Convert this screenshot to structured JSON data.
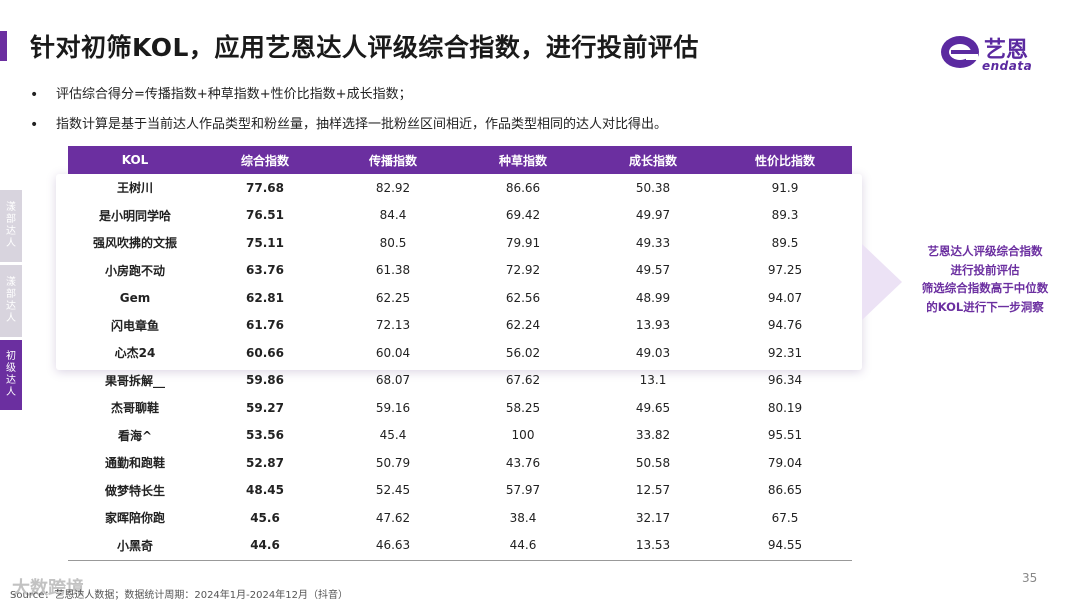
{
  "title": "针对初筛KOL，应用艺恩达人评级综合指数，进行投前评估",
  "logo": {
    "name": "艺恩",
    "sub": "endata"
  },
  "bullets": [
    "评估综合得分=传播指数+种草指数+性价比指数+成长指数；",
    "指数计算是基于当前达人作品类型和粉丝量，抽样选择一批粉丝区间相近，作品类型相同的达人对比得出。"
  ],
  "side_tabs": [
    {
      "chars": [
        "漾",
        "部",
        "达",
        "人"
      ]
    },
    {
      "chars": [
        "漾",
        "部",
        "达",
        "人"
      ]
    },
    {
      "chars": [
        "初",
        "级",
        "达",
        "人"
      ]
    }
  ],
  "table": {
    "headers": [
      "KOL",
      "综合指数",
      "传播指数",
      "种草指数",
      "成长指数",
      "性价比指数"
    ],
    "rows": [
      [
        "王树川",
        "77.68",
        "82.92",
        "86.66",
        "50.38",
        "91.9"
      ],
      [
        "是小明同学哈",
        "76.51",
        "84.4",
        "69.42",
        "49.97",
        "89.3"
      ],
      [
        "强风吹拂的文振",
        "75.11",
        "80.5",
        "79.91",
        "49.33",
        "89.5"
      ],
      [
        "小房跑不动",
        "63.76",
        "61.38",
        "72.92",
        "49.57",
        "97.25"
      ],
      [
        "Gem",
        "62.81",
        "62.25",
        "62.56",
        "48.99",
        "94.07"
      ],
      [
        "闪电章鱼",
        "61.76",
        "72.13",
        "62.24",
        "13.93",
        "94.76"
      ],
      [
        "心杰24",
        "60.66",
        "60.04",
        "56.02",
        "49.03",
        "92.31"
      ],
      [
        "果哥拆解__",
        "59.86",
        "68.07",
        "67.62",
        "13.1",
        "96.34"
      ],
      [
        "杰哥聊鞋",
        "59.27",
        "59.16",
        "58.25",
        "49.65",
        "80.19"
      ],
      [
        "看海^",
        "53.56",
        "45.4",
        "100",
        "33.82",
        "95.51"
      ],
      [
        "通勤和跑鞋",
        "52.87",
        "50.79",
        "43.76",
        "50.58",
        "79.04"
      ],
      [
        "做梦特长生",
        "48.45",
        "52.45",
        "57.97",
        "12.57",
        "86.65"
      ],
      [
        "家晖陪你跑",
        "45.6",
        "47.62",
        "38.4",
        "32.17",
        "67.5"
      ],
      [
        "小黑奇",
        "44.6",
        "46.63",
        "44.6",
        "13.53",
        "94.55"
      ]
    ]
  },
  "callout": {
    "lines": [
      "艺恩达人评级综合指数",
      "进行投前评估",
      "筛选综合指数高于中位数",
      "的KOL进行下一步洞察"
    ]
  },
  "source": "Source：艺恩达人数据；数据统计周期：2024年1月-2024年12月（抖音）",
  "watermark": "大数跨境",
  "page_number": "35",
  "colors": {
    "accent": "#6b2fa0",
    "tab_inactive": "#d8d4de"
  }
}
